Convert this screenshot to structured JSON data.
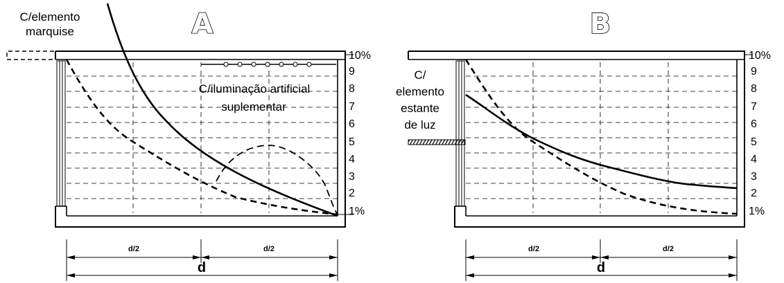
{
  "panel_a": {
    "title": "A",
    "marquise_label_1": "C/elemento",
    "marquise_label_2": "marquise",
    "artificial_label_1": "C/iluminação artificial",
    "artificial_label_2": "suplementar",
    "half_label_left": "d/2",
    "half_label_right": "d/2",
    "depth_label": "d"
  },
  "panel_b": {
    "title": "B",
    "shelf_label_1": "C/",
    "shelf_label_2": "elemento",
    "shelf_label_3": "estante",
    "shelf_label_4": "de luz",
    "half_label_left": "d/2",
    "half_label_right": "d/2",
    "depth_label": "d"
  },
  "scale_a": [
    "10%",
    "9",
    "8",
    "7",
    "6",
    "5",
    "4",
    "3",
    "2",
    "1%"
  ],
  "scale_b": [
    "10%",
    "9",
    "8",
    "7",
    "6",
    "5",
    "4",
    "3",
    "2",
    "1%"
  ]
}
